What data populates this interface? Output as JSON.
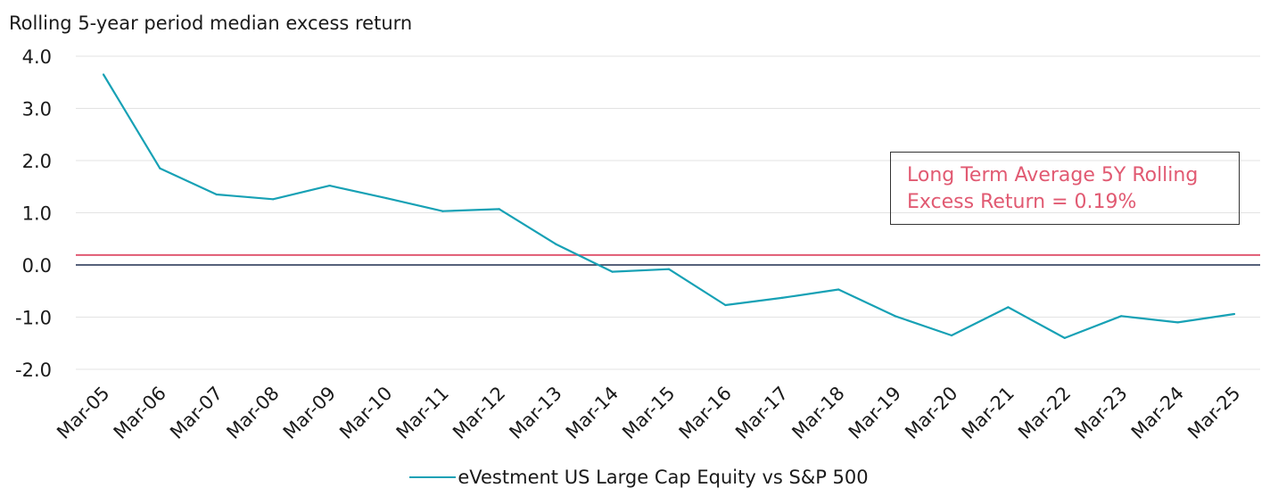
{
  "chart_data": {
    "type": "line",
    "title": "Rolling 5-year period median excess return",
    "categories": [
      "Mar-05",
      "Mar-06",
      "Mar-07",
      "Mar-08",
      "Mar-09",
      "Mar-10",
      "Mar-11",
      "Mar-12",
      "Mar-13",
      "Mar-14",
      "Mar-15",
      "Mar-16",
      "Mar-17",
      "Mar-18",
      "Mar-19",
      "Mar-20",
      "Mar-21",
      "Mar-22",
      "Mar-23",
      "Mar-24",
      "Mar-25"
    ],
    "series": [
      {
        "name": "eVestment US Large Cap Equity vs S&P 500",
        "color": "#17a1b5",
        "values": [
          3.65,
          1.85,
          1.35,
          1.26,
          1.52,
          1.28,
          1.03,
          1.07,
          0.4,
          -0.13,
          -0.08,
          -0.77,
          -0.63,
          -0.47,
          -0.98,
          -1.35,
          -0.81,
          -1.4,
          -0.98,
          -1.1,
          -0.94
        ]
      }
    ],
    "reference_line": {
      "value": 0.19,
      "color": "#e15a72",
      "label": "Long Term Average 5Y Rolling Excess Return = 0.19%"
    },
    "zero_line_color": "#1f2d4e",
    "ylim": [
      -2.0,
      4.0
    ],
    "yticks": [
      "-2.0",
      "-1.0",
      "0.0",
      "1.0",
      "2.0",
      "3.0",
      "4.0"
    ],
    "grid": true,
    "legend_position": "bottom"
  }
}
